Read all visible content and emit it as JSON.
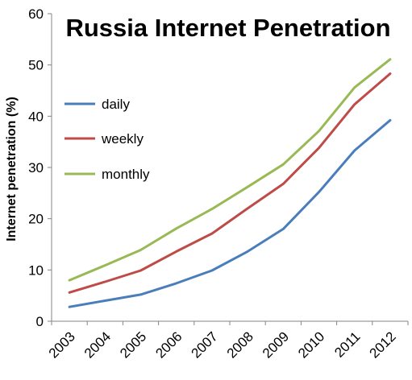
{
  "chart_data": {
    "type": "line",
    "title": "Russia Internet Penetration",
    "ylabel": "Internet penetration (%)",
    "xlabel": "",
    "categories": [
      "2003",
      "2004",
      "2005",
      "2006",
      "2007",
      "2008",
      "2009",
      "2010",
      "2011",
      "2012"
    ],
    "ylim": [
      0,
      60
    ],
    "yticks": [
      "0",
      "10",
      "20",
      "30",
      "40",
      "50",
      "60"
    ],
    "grid": false,
    "legend_position": "left",
    "series": [
      {
        "name": "daily",
        "color": "#4a7ebb",
        "values": [
          2.8,
          4.0,
          5.2,
          7.4,
          9.9,
          13.6,
          18.0,
          25.2,
          33.3,
          39.2
        ]
      },
      {
        "name": "weekly",
        "color": "#be4b48",
        "values": [
          5.6,
          7.7,
          9.9,
          13.6,
          17.1,
          22.0,
          26.8,
          33.8,
          42.3,
          48.3
        ]
      },
      {
        "name": "monthly",
        "color": "#98b954",
        "values": [
          8.0,
          10.9,
          13.9,
          18.1,
          21.9,
          26.2,
          30.6,
          37.1,
          45.6,
          51.1
        ]
      }
    ]
  }
}
